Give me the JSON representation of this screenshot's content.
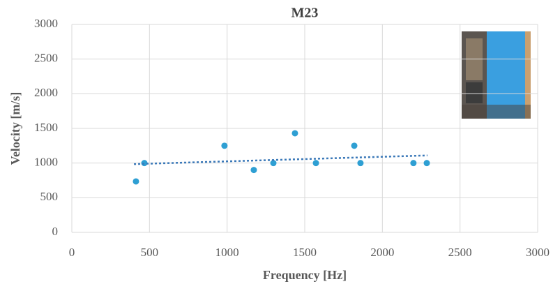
{
  "chart_data": {
    "type": "scatter",
    "title": "M23",
    "x_label": "Frequency [Hz]",
    "y_label": "Velocity [m/s]",
    "series": [
      {
        "color": "#2e9fd3",
        "x": [
          413,
          467,
          983,
          1172,
          1298,
          1437,
          1572,
          1819,
          1859,
          2200,
          2286
        ],
        "values": [
          735,
          1000,
          1250,
          900,
          1000,
          1430,
          1000,
          1250,
          1000,
          1000,
          1000
        ]
      }
    ],
    "trendline": {
      "color": "#3a78b8",
      "x": [
        400,
        2290
      ],
      "values": [
        985,
        1110
      ]
    },
    "xlim": [
      0,
      3000
    ],
    "xticks": [
      0,
      500,
      1000,
      1500,
      2000,
      2500,
      3000
    ],
    "ylim": [
      0,
      3000
    ],
    "yticks": [
      0,
      500,
      1000,
      1500,
      2000,
      2500,
      3000
    ],
    "grid": true
  }
}
